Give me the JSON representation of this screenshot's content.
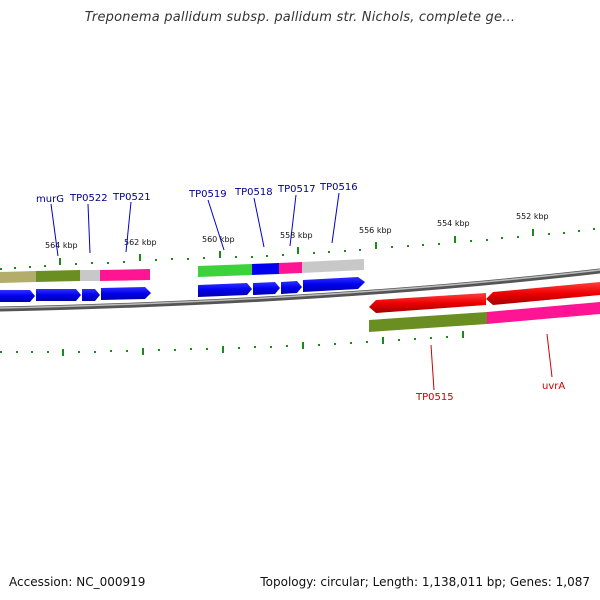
{
  "title": "Treponema pallidum subsp. pallidum str. Nichols, complete ge...",
  "footer": {
    "accession": "Accession: NC_000919",
    "summary": "Topology: circular; Length: 1,138,011 bp; Genes: 1,087"
  },
  "ticks": [
    "564 kbp",
    "562 kbp",
    "560 kbp",
    "558 kbp",
    "556 kbp",
    "554 kbp",
    "552 kbp"
  ],
  "genes_top": [
    "murG",
    "TP0522",
    "TP0521",
    "TP0519",
    "TP0518",
    "TP0517",
    "TP0516"
  ],
  "genes_bottom": [
    "TP0515",
    "uvrA"
  ],
  "colors": {
    "backbone": "#7a7a7a",
    "tick": "#1a8a1a",
    "cds": "#0000ee",
    "cds_reverse": "#ee0000",
    "label_forward": "#00008b",
    "label_reverse": "#cc0000"
  }
}
